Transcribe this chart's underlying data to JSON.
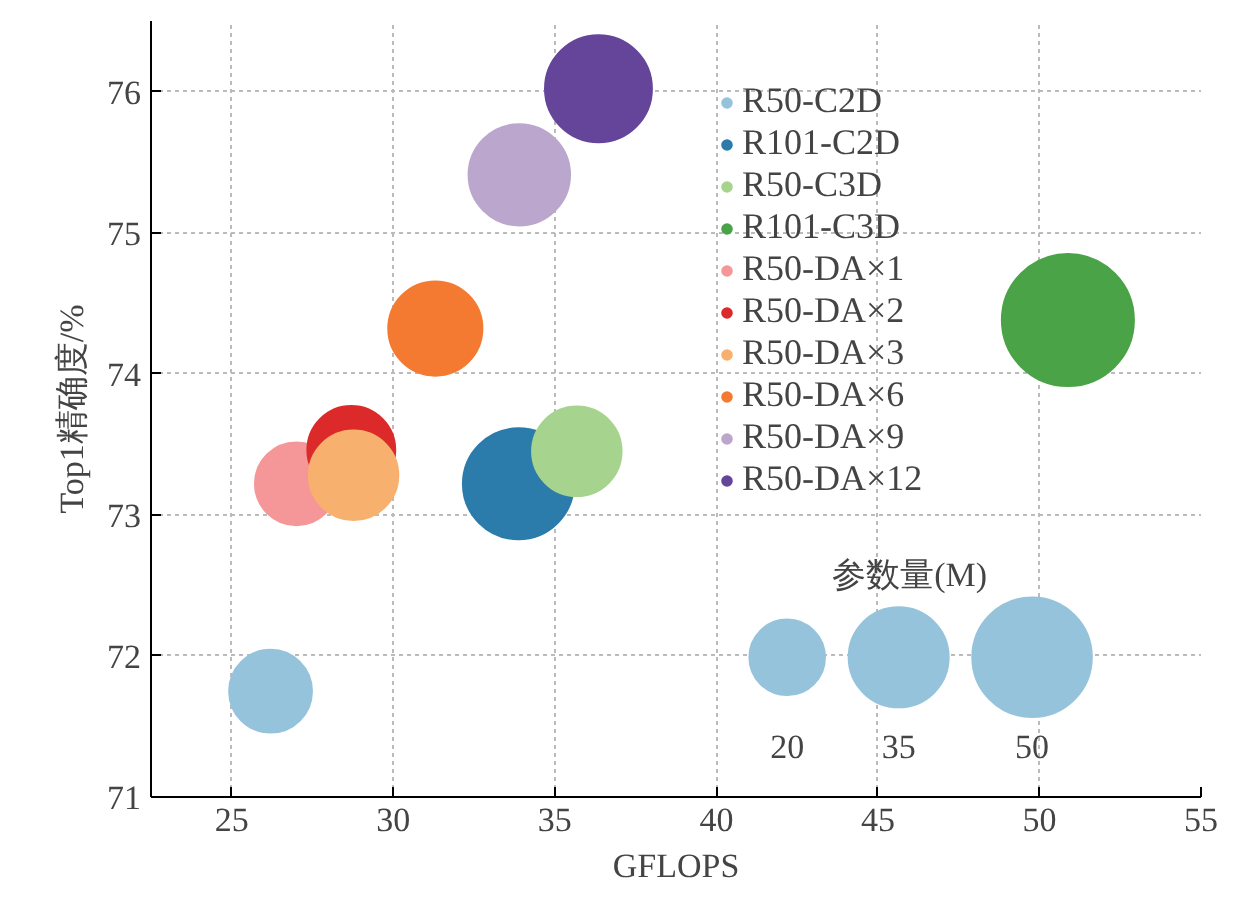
{
  "chart_data": {
    "type": "bubble",
    "xlabel": "GFLOPS",
    "ylabel": "Top1精确度/%",
    "xlim": [
      22.5,
      55
    ],
    "xticks": [
      25,
      30,
      35,
      40,
      45,
      50,
      55
    ],
    "ylim": [
      71,
      76.5
    ],
    "yticks": [
      71,
      72,
      73,
      74,
      75,
      76
    ],
    "grid": true,
    "legend": "top right",
    "size_legend": [
      20,
      35,
      50
    ],
    "annotations": [
      "参数量(M)"
    ],
    "series": [
      {
        "name": "R50-C2D",
        "color": "#96c3dc",
        "x": [
          26.2
        ],
        "values": [
          71.75
        ],
        "sizes": [
          24
        ]
      },
      {
        "name": "R101-C2D",
        "color": "#2b7bab",
        "x": [
          33.87
        ],
        "values": [
          73.22
        ],
        "sizes": [
          43
        ]
      },
      {
        "name": "R50-C3D",
        "color": "#a6d48e",
        "x": [
          35.68
        ],
        "values": [
          73.45
        ],
        "sizes": [
          28
        ]
      },
      {
        "name": "R101-C3D",
        "color": "#4aa347",
        "x": [
          50.88
        ],
        "values": [
          74.38
        ],
        "sizes": [
          61
        ]
      },
      {
        "name": "R50-DA×1",
        "color": "#f59798",
        "x": [
          27.0
        ],
        "values": [
          73.22
        ],
        "sizes": [
          24
        ]
      },
      {
        "name": "R50-DA×2",
        "color": "#dc2a2a",
        "x": [
          28.7
        ],
        "values": [
          73.46
        ],
        "sizes": [
          27
        ]
      },
      {
        "name": "R50-DA×3",
        "color": "#f7b06e",
        "x": [
          28.77
        ],
        "values": [
          73.28
        ],
        "sizes": [
          28
        ]
      },
      {
        "name": "R50-DA×6",
        "color": "#f37a30",
        "x": [
          31.3
        ],
        "values": [
          74.32
        ],
        "sizes": [
          31
        ]
      },
      {
        "name": "R50-DA×9",
        "color": "#bba6cd",
        "x": [
          33.9
        ],
        "values": [
          75.41
        ],
        "sizes": [
          36
        ]
      },
      {
        "name": "R50-DA×12",
        "color": "#64459a",
        "x": [
          36.35
        ],
        "values": [
          76.02
        ],
        "sizes": [
          40
        ]
      }
    ]
  }
}
